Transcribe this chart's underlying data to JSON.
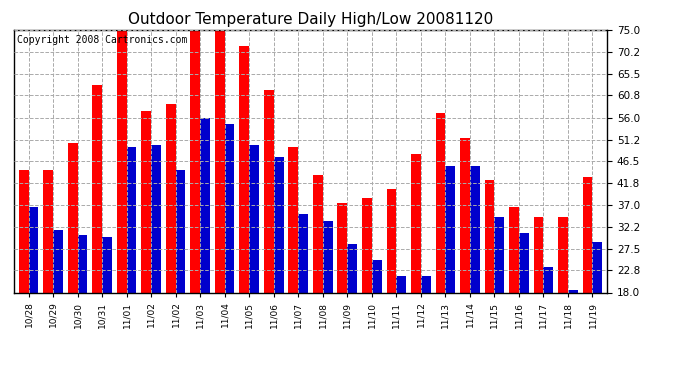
{
  "title": "Outdoor Temperature Daily High/Low 20081120",
  "copyright": "Copyright 2008 Cartronics.com",
  "dates": [
    "10/28",
    "10/29",
    "10/30",
    "10/31",
    "11/01",
    "11/02",
    "11/02",
    "11/03",
    "11/04",
    "11/05",
    "11/06",
    "11/07",
    "11/08",
    "11/09",
    "11/10",
    "11/11",
    "11/12",
    "11/13",
    "11/14",
    "11/15",
    "11/16",
    "11/17",
    "11/18",
    "11/19"
  ],
  "highs": [
    44.5,
    44.5,
    50.5,
    63.0,
    75.0,
    57.5,
    59.0,
    75.0,
    75.5,
    71.5,
    62.0,
    49.5,
    43.5,
    37.5,
    38.5,
    40.5,
    48.0,
    57.0,
    51.5,
    42.5,
    36.5,
    34.5,
    34.5,
    43.0
  ],
  "lows": [
    36.5,
    31.5,
    30.5,
    30.0,
    49.5,
    50.0,
    44.5,
    56.0,
    54.5,
    50.0,
    47.5,
    35.0,
    33.5,
    28.5,
    25.0,
    21.5,
    21.5,
    45.5,
    45.5,
    34.5,
    31.0,
    23.5,
    18.5,
    29.0
  ],
  "high_color": "#ff0000",
  "low_color": "#0000cc",
  "background_color": "#ffffff",
  "plot_bg_color": "#ffffff",
  "grid_color": "#aaaaaa",
  "yticks": [
    18.0,
    22.8,
    27.5,
    32.2,
    37.0,
    41.8,
    46.5,
    51.2,
    56.0,
    60.8,
    65.5,
    70.2,
    75.0
  ],
  "ylim": [
    18.0,
    75.0
  ],
  "bar_width": 0.4,
  "title_fontsize": 11,
  "copyright_fontsize": 7
}
